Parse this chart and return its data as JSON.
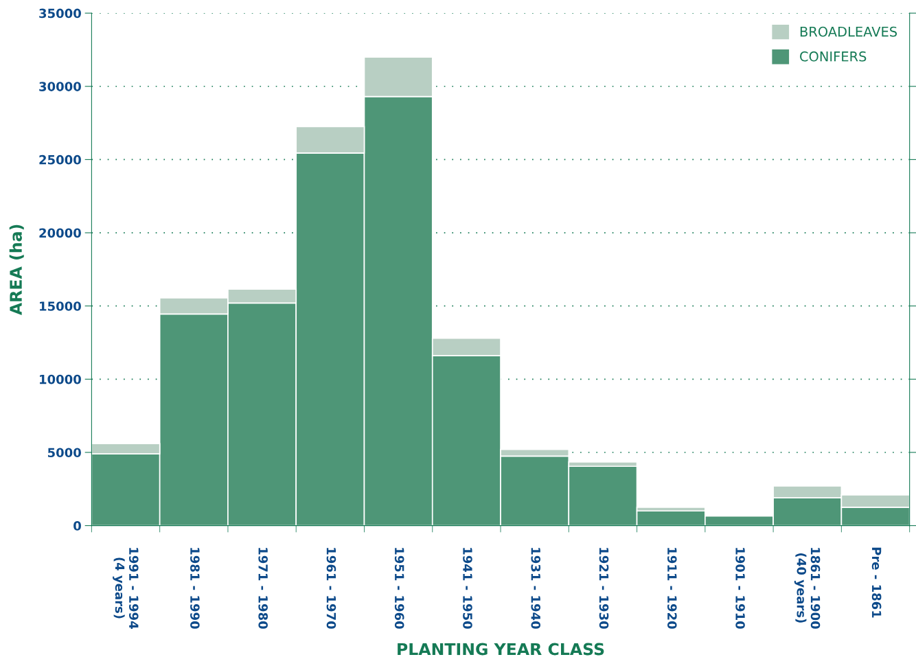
{
  "chart_data": {
    "type": "bar",
    "stacked": true,
    "xlabel": "PLANTING YEAR CLASS",
    "ylabel": "AREA (ha)",
    "categories": [
      "1991 - 1994\n(4 years)",
      "1981 - 1990",
      "1971 - 1980",
      "1961 - 1970",
      "1951 - 1960",
      "1941 - 1950",
      "1931 - 1940",
      "1921 - 1930",
      "1911 - 1920",
      "1901 - 1910",
      "1861 - 1900\n(40 years)",
      "Pre - 1861"
    ],
    "series": [
      {
        "name": "CONIFERS",
        "color": "#4e9677",
        "values": [
          4900,
          14450,
          15200,
          25450,
          29300,
          11600,
          4750,
          4050,
          1000,
          650,
          1900,
          1250
        ]
      },
      {
        "name": "BROADLEAVES",
        "color": "#b8cfc3",
        "values": [
          700,
          1100,
          950,
          1800,
          2700,
          1200,
          450,
          300,
          250,
          null,
          800,
          850
        ]
      }
    ],
    "ylim": [
      0,
      35000
    ],
    "yticks": [
      0,
      5000,
      10000,
      15000,
      20000,
      25000,
      30000,
      35000
    ],
    "grid": "y",
    "legend": "top right"
  }
}
